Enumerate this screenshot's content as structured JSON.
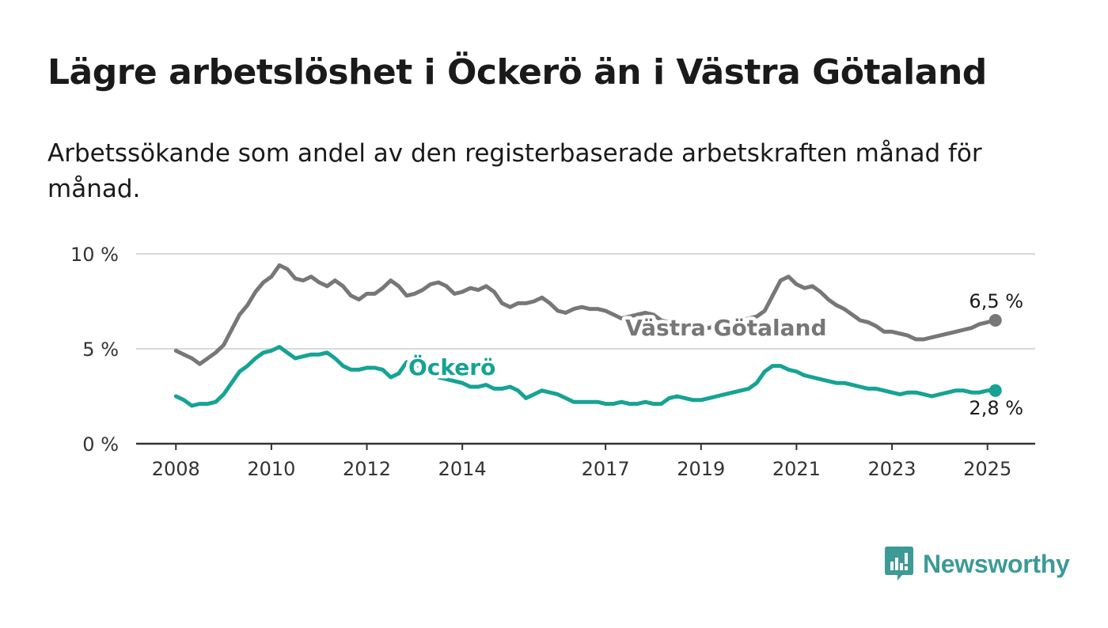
{
  "title": "Lägre arbetslöshet i Öckerö än i Västra Götaland",
  "subtitle": "Arbetssökande som andel av den registerbaserade arbetskraften månad för månad.",
  "brand": {
    "name": "Newsworthy",
    "color": "#3d9a97"
  },
  "chart_data": {
    "type": "line",
    "y_ticks": [
      "0 %",
      "5 %",
      "10 %"
    ],
    "ylim": [
      0,
      10
    ],
    "x_ticks": [
      "2008",
      "2010",
      "2012",
      "2014",
      "2017",
      "2019",
      "2021",
      "2023",
      "2025"
    ],
    "xlim": [
      "2007-03",
      "2026-01"
    ],
    "grid": true,
    "series": [
      {
        "name": "Västra Götaland",
        "color": "#777777",
        "end_label": "6,5 %",
        "x": [
          "2008-01",
          "2008-03",
          "2008-05",
          "2008-07",
          "2008-09",
          "2008-11",
          "2009-01",
          "2009-03",
          "2009-05",
          "2009-07",
          "2009-09",
          "2009-11",
          "2010-01",
          "2010-03",
          "2010-05",
          "2010-07",
          "2010-09",
          "2010-11",
          "2011-01",
          "2011-03",
          "2011-05",
          "2011-07",
          "2011-09",
          "2011-11",
          "2012-01",
          "2012-03",
          "2012-05",
          "2012-07",
          "2012-09",
          "2012-11",
          "2013-01",
          "2013-03",
          "2013-05",
          "2013-07",
          "2013-09",
          "2013-11",
          "2014-01",
          "2014-03",
          "2014-05",
          "2014-07",
          "2014-09",
          "2014-11",
          "2015-01",
          "2015-03",
          "2015-05",
          "2015-07",
          "2015-09",
          "2015-11",
          "2016-01",
          "2016-03",
          "2016-05",
          "2016-07",
          "2016-09",
          "2016-11",
          "2017-01",
          "2017-03",
          "2017-05",
          "2017-07",
          "2017-09",
          "2017-11",
          "2018-01",
          "2018-03",
          "2018-05",
          "2018-07",
          "2018-09",
          "2018-11",
          "2019-01",
          "2019-03",
          "2019-05",
          "2019-07",
          "2019-09",
          "2019-11",
          "2020-01",
          "2020-03",
          "2020-05",
          "2020-07",
          "2020-09",
          "2020-11",
          "2021-01",
          "2021-03",
          "2021-05",
          "2021-07",
          "2021-09",
          "2021-11",
          "2022-01",
          "2022-03",
          "2022-05",
          "2022-07",
          "2022-09",
          "2022-11",
          "2023-01",
          "2023-03",
          "2023-05",
          "2023-07",
          "2023-09",
          "2023-11",
          "2024-01",
          "2024-03",
          "2024-05",
          "2024-07",
          "2024-09",
          "2024-11",
          "2025-01",
          "2025-03"
        ],
        "y": [
          4.9,
          4.7,
          4.5,
          4.2,
          4.5,
          4.8,
          5.2,
          6.0,
          6.8,
          7.3,
          8.0,
          8.5,
          8.8,
          9.4,
          9.2,
          8.7,
          8.6,
          8.8,
          8.5,
          8.3,
          8.6,
          8.3,
          7.8,
          7.6,
          7.9,
          7.9,
          8.2,
          8.6,
          8.3,
          7.8,
          7.9,
          8.1,
          8.4,
          8.5,
          8.3,
          7.9,
          8.0,
          8.2,
          8.1,
          8.3,
          8.0,
          7.4,
          7.2,
          7.4,
          7.4,
          7.5,
          7.7,
          7.4,
          7.0,
          6.9,
          7.1,
          7.2,
          7.1,
          7.1,
          7.0,
          6.8,
          6.6,
          6.7,
          6.8,
          6.9,
          6.8,
          6.5,
          6.4,
          6.4,
          6.3,
          6.2,
          6.1,
          6.1,
          6.2,
          6.3,
          6.4,
          6.5,
          6.6,
          6.7,
          7.0,
          7.8,
          8.6,
          8.8,
          8.4,
          8.2,
          8.3,
          8.0,
          7.6,
          7.3,
          7.1,
          6.8,
          6.5,
          6.4,
          6.2,
          5.9,
          5.9,
          5.8,
          5.7,
          5.5,
          5.5,
          5.6,
          5.7,
          5.8,
          5.9,
          6.0,
          6.1,
          6.3,
          6.4,
          6.5
        ]
      },
      {
        "name": "Öckerö",
        "color": "#16a394",
        "end_label": "2,8 %",
        "x": [
          "2008-01",
          "2008-03",
          "2008-05",
          "2008-07",
          "2008-09",
          "2008-11",
          "2009-01",
          "2009-03",
          "2009-05",
          "2009-07",
          "2009-09",
          "2009-11",
          "2010-01",
          "2010-03",
          "2010-05",
          "2010-07",
          "2010-09",
          "2010-11",
          "2011-01",
          "2011-03",
          "2011-05",
          "2011-07",
          "2011-09",
          "2011-11",
          "2012-01",
          "2012-03",
          "2012-05",
          "2012-07",
          "2012-09",
          "2012-11",
          "2013-01",
          "2013-03",
          "2013-05",
          "2013-07",
          "2013-09",
          "2013-11",
          "2014-01",
          "2014-03",
          "2014-05",
          "2014-07",
          "2014-09",
          "2014-11",
          "2015-01",
          "2015-03",
          "2015-05",
          "2015-07",
          "2015-09",
          "2015-11",
          "2016-01",
          "2016-03",
          "2016-05",
          "2016-07",
          "2016-09",
          "2016-11",
          "2017-01",
          "2017-03",
          "2017-05",
          "2017-07",
          "2017-09",
          "2017-11",
          "2018-01",
          "2018-03",
          "2018-05",
          "2018-07",
          "2018-09",
          "2018-11",
          "2019-01",
          "2019-03",
          "2019-05",
          "2019-07",
          "2019-09",
          "2019-11",
          "2020-01",
          "2020-03",
          "2020-05",
          "2020-07",
          "2020-09",
          "2020-11",
          "2021-01",
          "2021-03",
          "2021-05",
          "2021-07",
          "2021-09",
          "2021-11",
          "2022-01",
          "2022-03",
          "2022-05",
          "2022-07",
          "2022-09",
          "2022-11",
          "2023-01",
          "2023-03",
          "2023-05",
          "2023-07",
          "2023-09",
          "2023-11",
          "2024-01",
          "2024-03",
          "2024-05",
          "2024-07",
          "2024-09",
          "2024-11",
          "2025-01",
          "2025-03"
        ],
        "y": [
          2.5,
          2.3,
          2.0,
          2.1,
          2.1,
          2.2,
          2.6,
          3.2,
          3.8,
          4.1,
          4.5,
          4.8,
          4.9,
          5.1,
          4.8,
          4.5,
          4.6,
          4.7,
          4.7,
          4.8,
          4.5,
          4.1,
          3.9,
          3.9,
          4.0,
          4.0,
          3.9,
          3.5,
          3.7,
          4.3,
          4.2,
          4.0,
          3.7,
          3.5,
          3.4,
          3.3,
          3.2,
          3.0,
          3.0,
          3.1,
          2.9,
          2.9,
          3.0,
          2.8,
          2.4,
          2.6,
          2.8,
          2.7,
          2.6,
          2.4,
          2.2,
          2.2,
          2.2,
          2.2,
          2.1,
          2.1,
          2.2,
          2.1,
          2.1,
          2.2,
          2.1,
          2.1,
          2.4,
          2.5,
          2.4,
          2.3,
          2.3,
          2.4,
          2.5,
          2.6,
          2.7,
          2.8,
          2.9,
          3.2,
          3.8,
          4.1,
          4.1,
          3.9,
          3.8,
          3.6,
          3.5,
          3.4,
          3.3,
          3.2,
          3.2,
          3.1,
          3.0,
          2.9,
          2.9,
          2.8,
          2.7,
          2.6,
          2.7,
          2.7,
          2.6,
          2.5,
          2.6,
          2.7,
          2.8,
          2.8,
          2.7,
          2.7,
          2.8,
          2.8
        ]
      }
    ]
  }
}
